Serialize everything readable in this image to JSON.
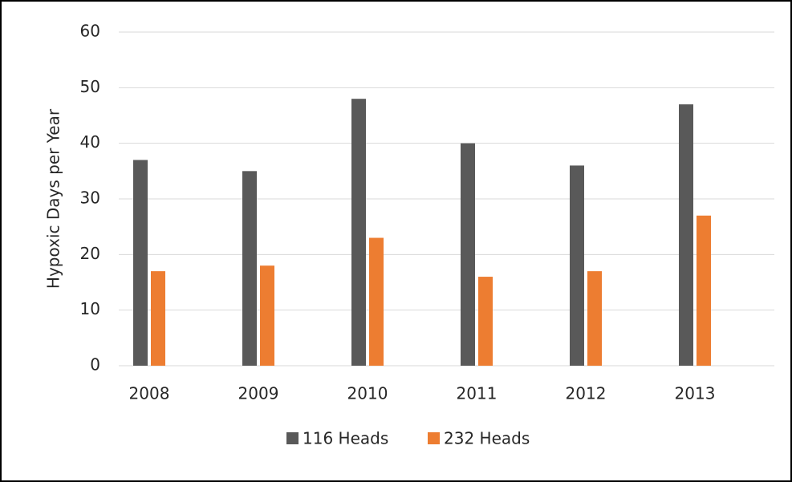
{
  "chart_data": {
    "type": "bar",
    "y_label": "Hypoxic Days per Year",
    "categories": [
      "2008",
      "2009",
      "2010",
      "2011",
      "2012",
      "2013"
    ],
    "series": [
      {
        "name": "116 Heads",
        "color": "#595959",
        "values": [
          37,
          35,
          48,
          40,
          36,
          47
        ]
      },
      {
        "name": "232 Heads",
        "color": "#ed7d31",
        "values": [
          17,
          18,
          23,
          16,
          17,
          27
        ]
      }
    ],
    "ylim": [
      0,
      60
    ],
    "yticks": [
      0,
      10,
      20,
      30,
      40,
      50,
      60
    ],
    "grid": true,
    "legend": "bottom"
  }
}
